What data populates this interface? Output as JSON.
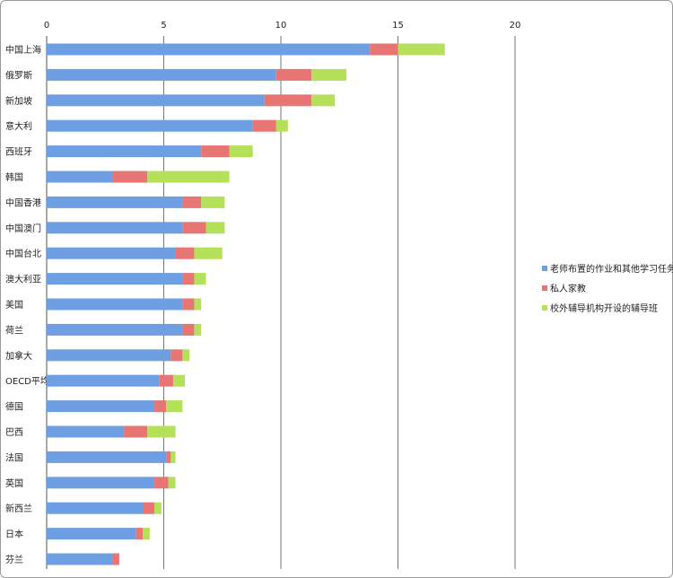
{
  "chart_data": {
    "type": "bar",
    "orientation": "horizontal",
    "stacked": true,
    "xlim": [
      0,
      20
    ],
    "x_ticks": [
      0,
      5,
      10,
      15,
      20
    ],
    "grid": true,
    "legend_position": "right",
    "categories": [
      "中国上海",
      "俄罗斯",
      "新加坡",
      "意大利",
      "西班牙",
      "韩国",
      "中国香港",
      "中国澳门",
      "中国台北",
      "澳大利亚",
      "美国",
      "荷兰",
      "加拿大",
      "OECD平均",
      "德国",
      "巴西",
      "法国",
      "英国",
      "新西兰",
      "日本",
      "芬兰"
    ],
    "series": [
      {
        "name": "老师布置的作业和其他学习任务",
        "color": "#6f9fe3",
        "values": [
          13.8,
          9.8,
          9.3,
          8.8,
          6.6,
          2.8,
          5.8,
          5.8,
          5.5,
          5.8,
          5.8,
          5.8,
          5.3,
          4.8,
          4.6,
          3.3,
          5.1,
          4.6,
          4.1,
          3.8,
          2.8
        ]
      },
      {
        "name": "私人家教",
        "color": "#e67573",
        "values": [
          1.2,
          1.5,
          2.0,
          1.0,
          1.2,
          1.5,
          0.8,
          1.0,
          0.8,
          0.5,
          0.5,
          0.5,
          0.5,
          0.6,
          0.5,
          1.0,
          0.2,
          0.6,
          0.5,
          0.3,
          0.3
        ]
      },
      {
        "name": "校外辅导机构开设的辅导班",
        "color": "#b4e05a",
        "values": [
          2.0,
          1.5,
          1.0,
          0.5,
          1.0,
          3.5,
          1.0,
          0.8,
          1.2,
          0.5,
          0.3,
          0.3,
          0.3,
          0.5,
          0.7,
          1.2,
          0.2,
          0.3,
          0.3,
          0.3,
          0.0
        ]
      }
    ]
  }
}
